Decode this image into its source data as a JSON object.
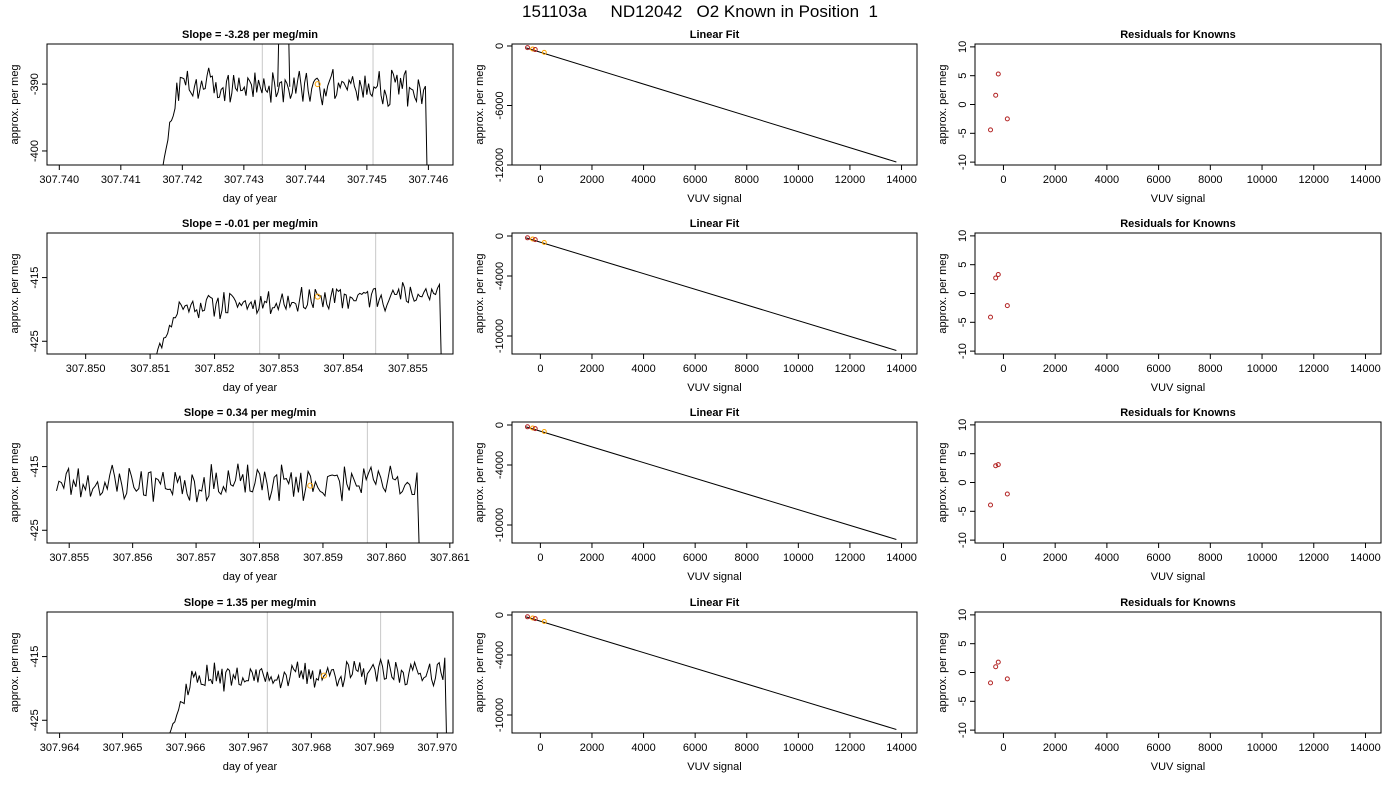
{
  "title": "151103a     ND12042   O2 Known in Position  1",
  "colors": {
    "series": "#000000",
    "marker": "#ffa500",
    "points": "#b22222",
    "vline": "#c8c8c8"
  },
  "chart_data": [
    {
      "type": "line",
      "title": "Slope =  -3.28  per meg/min",
      "xlabel": "day of year",
      "ylabel": "approx. per meg",
      "xlim": [
        307.7398,
        307.7464
      ],
      "ylim": [
        -402.1,
        -384.0
      ],
      "xticks": [
        307.74,
        307.741,
        307.742,
        307.743,
        307.744,
        307.745,
        307.746
      ],
      "xtick_labels": [
        "307.740",
        "307.741",
        "307.742",
        "307.743",
        "307.744",
        "307.745",
        "307.746"
      ],
      "yticks": [
        -400,
        -390
      ],
      "ytick_labels": [
        "-400",
        "-390"
      ],
      "xdecimals": 3,
      "vlines": [
        307.7433,
        307.7451
      ],
      "marker": {
        "x": 307.7442,
        "y": -390.0
      },
      "spike": 307.74355,
      "spike_width": 0.00018,
      "trace": {
        "start": 307.74165,
        "end": 307.74598,
        "mean": -390.4,
        "slope": -0.6,
        "amp": 2.2,
        "rise": 0.00028,
        "seed": 3
      }
    },
    {
      "type": "line",
      "title": "Linear Fit",
      "xlabel": "VUV signal",
      "ylabel": "approx. per meg",
      "xlim": [
        -1100,
        14600
      ],
      "ylim": [
        -12000,
        200
      ],
      "xticks": [
        0,
        2000,
        4000,
        6000,
        8000,
        10000,
        12000,
        14000
      ],
      "xtick_labels": [
        "0",
        "2000",
        "4000",
        "6000",
        "8000",
        "10000",
        "12000",
        "14000"
      ],
      "yticks": [
        -12000,
        -6000,
        0
      ],
      "ytick_labels": [
        "-12000",
        "-6000",
        "0"
      ],
      "line": {
        "x0": -550,
        "y0": -190,
        "x1": 13800,
        "y1": -11700
      },
      "points": [
        {
          "x": -500,
          "y": -170
        },
        {
          "x": -300,
          "y": -300
        },
        {
          "x": -200,
          "y": -360
        },
        {
          "x": 150,
          "y": -640
        }
      ]
    },
    {
      "type": "scatter",
      "title": "Residuals for Knowns",
      "xlabel": "VUV signal",
      "ylabel": "approx. per meg",
      "xlim": [
        -1100,
        14600
      ],
      "ylim": [
        -10.5,
        10.5
      ],
      "xticks": [
        0,
        2000,
        4000,
        6000,
        8000,
        10000,
        12000,
        14000
      ],
      "xtick_labels": [
        "0",
        "2000",
        "4000",
        "6000",
        "8000",
        "10000",
        "12000",
        "14000"
      ],
      "yticks": [
        -10,
        -5,
        0,
        5,
        10
      ],
      "ytick_labels": [
        "-10",
        "-5",
        "0",
        "5",
        "10"
      ],
      "points": [
        {
          "x": -500,
          "y": -4.4
        },
        {
          "x": -300,
          "y": 1.6
        },
        {
          "x": -200,
          "y": 5.3
        },
        {
          "x": 150,
          "y": -2.5
        }
      ]
    },
    {
      "type": "line",
      "title": "Slope =  -0.01  per meg/min",
      "xlabel": "day of year",
      "ylabel": "approx. per meg",
      "xlim": [
        307.8494,
        307.8557
      ],
      "ylim": [
        -427.0,
        -408.0
      ],
      "xticks": [
        307.85,
        307.851,
        307.852,
        307.853,
        307.854,
        307.855
      ],
      "xtick_labels": [
        "307.850",
        "307.851",
        "307.852",
        "307.853",
        "307.854",
        "307.855"
      ],
      "yticks": [
        -425,
        -415
      ],
      "ytick_labels": [
        "-425",
        "-415"
      ],
      "xdecimals": 3,
      "vlines": [
        307.8527,
        307.8545
      ],
      "marker": {
        "x": 307.8536,
        "y": -418.0
      },
      "trace": {
        "start": 307.851,
        "end": 307.85552,
        "mean": -418.6,
        "slope": 2.4,
        "amp": 1.7,
        "rise": 0.00045,
        "seed": 11
      }
    },
    {
      "type": "line",
      "title": "Linear Fit",
      "xlabel": "VUV signal",
      "ylabel": "approx. per meg",
      "xlim": [
        -1100,
        14600
      ],
      "ylim": [
        -11800,
        300
      ],
      "xticks": [
        0,
        2000,
        4000,
        6000,
        8000,
        10000,
        12000,
        14000
      ],
      "xtick_labels": [
        "0",
        "2000",
        "4000",
        "6000",
        "8000",
        "10000",
        "12000",
        "14000"
      ],
      "yticks": [
        -10000,
        -4000,
        0
      ],
      "ytick_labels": [
        "-10000",
        "-4000",
        "0"
      ],
      "line": {
        "x0": -550,
        "y0": -190,
        "x1": 13800,
        "y1": -11450
      },
      "points": [
        {
          "x": -500,
          "y": -180
        },
        {
          "x": -300,
          "y": -300
        },
        {
          "x": -200,
          "y": -360
        },
        {
          "x": 150,
          "y": -650
        }
      ]
    },
    {
      "type": "scatter",
      "title": "Residuals for Knowns",
      "xlabel": "VUV signal",
      "ylabel": "approx. per meg",
      "xlim": [
        -1100,
        14600
      ],
      "ylim": [
        -10.5,
        10.5
      ],
      "xticks": [
        0,
        2000,
        4000,
        6000,
        8000,
        10000,
        12000,
        14000
      ],
      "xtick_labels": [
        "0",
        "2000",
        "4000",
        "6000",
        "8000",
        "10000",
        "12000",
        "14000"
      ],
      "yticks": [
        -10,
        -5,
        0,
        5,
        10
      ],
      "ytick_labels": [
        "-10",
        "-5",
        "0",
        "5",
        "10"
      ],
      "points": [
        {
          "x": -500,
          "y": -4.1
        },
        {
          "x": -300,
          "y": 2.7
        },
        {
          "x": -200,
          "y": 3.3
        },
        {
          "x": 150,
          "y": -2.1
        }
      ]
    },
    {
      "type": "line",
      "title": "Slope =  0.34  per meg/min",
      "xlabel": "day of year",
      "ylabel": "approx. per meg",
      "xlim": [
        307.85465,
        307.86105
      ],
      "ylim": [
        -427.0,
        -408.0
      ],
      "xticks": [
        307.855,
        307.856,
        307.857,
        307.858,
        307.859,
        307.86,
        307.861
      ],
      "xtick_labels": [
        "307.855",
        "307.856",
        "307.857",
        "307.858",
        "307.859",
        "307.860",
        "307.861"
      ],
      "yticks": [
        -425,
        -415
      ],
      "ytick_labels": [
        "-425",
        "-415"
      ],
      "xdecimals": 3,
      "vlines": [
        307.8579,
        307.8597
      ],
      "marker": {
        "x": 307.8588,
        "y": -418.0
      },
      "trace": {
        "start": 307.8548,
        "end": 307.86052,
        "mean": -417.6,
        "slope": 0.0,
        "amp": 2.4,
        "rise": 0.0,
        "seed": 23
      }
    },
    {
      "type": "line",
      "title": "Linear Fit",
      "xlabel": "VUV signal",
      "ylabel": "approx. per meg",
      "xlim": [
        -1100,
        14600
      ],
      "ylim": [
        -11800,
        300
      ],
      "xticks": [
        0,
        2000,
        4000,
        6000,
        8000,
        10000,
        12000,
        14000
      ],
      "xtick_labels": [
        "0",
        "2000",
        "4000",
        "6000",
        "8000",
        "10000",
        "12000",
        "14000"
      ],
      "yticks": [
        -10000,
        -4000,
        0
      ],
      "ytick_labels": [
        "-10000",
        "-4000",
        "0"
      ],
      "line": {
        "x0": -550,
        "y0": -190,
        "x1": 13800,
        "y1": -11450
      },
      "points": [
        {
          "x": -500,
          "y": -180
        },
        {
          "x": -300,
          "y": -300
        },
        {
          "x": -200,
          "y": -360
        },
        {
          "x": 150,
          "y": -650
        }
      ]
    },
    {
      "type": "scatter",
      "title": "Residuals for Knowns",
      "xlabel": "VUV signal",
      "ylabel": "approx. per meg",
      "xlim": [
        -1100,
        14600
      ],
      "ylim": [
        -10.5,
        10.5
      ],
      "xticks": [
        0,
        2000,
        4000,
        6000,
        8000,
        10000,
        12000,
        14000
      ],
      "xtick_labels": [
        "0",
        "2000",
        "4000",
        "6000",
        "8000",
        "10000",
        "12000",
        "14000"
      ],
      "yticks": [
        -10,
        -5,
        0,
        5,
        10
      ],
      "ytick_labels": [
        "-10",
        "-5",
        "0",
        "5",
        "10"
      ],
      "points": [
        {
          "x": -500,
          "y": -3.9
        },
        {
          "x": -300,
          "y": 2.9
        },
        {
          "x": -200,
          "y": 3.1
        },
        {
          "x": 150,
          "y": -2.0
        }
      ]
    },
    {
      "type": "line",
      "title": "Slope =  1.35  per meg/min",
      "xlabel": "day of year",
      "ylabel": "approx. per meg",
      "xlim": [
        307.9638,
        307.97025
      ],
      "ylim": [
        -427.0,
        -408.0
      ],
      "xticks": [
        307.964,
        307.965,
        307.966,
        307.967,
        307.968,
        307.969,
        307.97
      ],
      "xtick_labels": [
        "307.964",
        "307.965",
        "307.966",
        "307.967",
        "307.968",
        "307.969",
        "307.970"
      ],
      "yticks": [
        -425,
        -415
      ],
      "ytick_labels": [
        "-425",
        "-415"
      ],
      "xdecimals": 3,
      "vlines": [
        307.9673,
        307.9691
      ],
      "marker": {
        "x": 307.9682,
        "y": -418.0
      },
      "trace": {
        "start": 307.96565,
        "end": 307.97015,
        "mean": -417.9,
        "slope": 1.2,
        "amp": 1.7,
        "rise": 0.00045,
        "seed": 37
      }
    },
    {
      "type": "line",
      "title": "Linear Fit",
      "xlabel": "VUV signal",
      "ylabel": "approx. per meg",
      "xlim": [
        -1100,
        14600
      ],
      "ylim": [
        -11800,
        300
      ],
      "xticks": [
        0,
        2000,
        4000,
        6000,
        8000,
        10000,
        12000,
        14000
      ],
      "xtick_labels": [
        "0",
        "2000",
        "4000",
        "6000",
        "8000",
        "10000",
        "12000",
        "14000"
      ],
      "yticks": [
        -10000,
        -4000,
        0
      ],
      "ytick_labels": [
        "-10000",
        "-4000",
        "0"
      ],
      "line": {
        "x0": -550,
        "y0": -190,
        "x1": 13800,
        "y1": -11450
      },
      "points": [
        {
          "x": -500,
          "y": -180
        },
        {
          "x": -300,
          "y": -300
        },
        {
          "x": -200,
          "y": -360
        },
        {
          "x": 150,
          "y": -650
        }
      ]
    },
    {
      "type": "scatter",
      "title": "Residuals for Knowns",
      "xlabel": "VUV signal",
      "ylabel": "approx. per meg",
      "xlim": [
        -1100,
        14600
      ],
      "ylim": [
        -10.5,
        10.5
      ],
      "xticks": [
        0,
        2000,
        4000,
        6000,
        8000,
        10000,
        12000,
        14000
      ],
      "xtick_labels": [
        "0",
        "2000",
        "4000",
        "6000",
        "8000",
        "10000",
        "12000",
        "14000"
      ],
      "yticks": [
        -10,
        -5,
        0,
        5,
        10
      ],
      "ytick_labels": [
        "-10",
        "-5",
        "0",
        "5",
        "10"
      ],
      "points": [
        {
          "x": -500,
          "y": -1.8
        },
        {
          "x": -300,
          "y": 1.0
        },
        {
          "x": -200,
          "y": 1.8
        },
        {
          "x": 150,
          "y": -1.1
        }
      ]
    }
  ]
}
